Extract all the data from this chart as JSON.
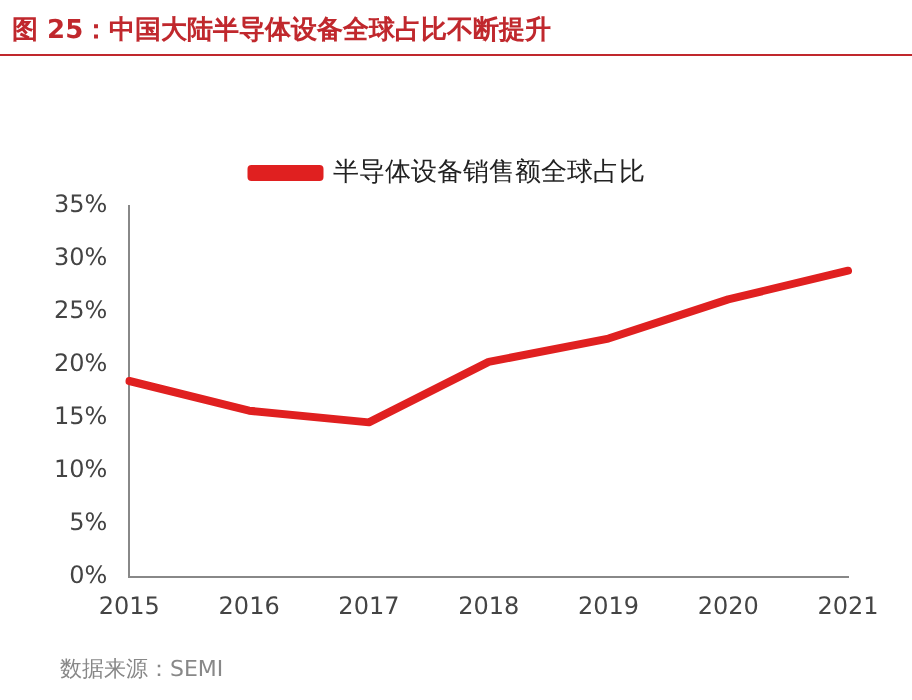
{
  "chart_data": {
    "type": "line",
    "title": "图 25：中国大陆半导体设备全球占比不断提升",
    "categories": [
      "2015",
      "2016",
      "2017",
      "2018",
      "2019",
      "2020",
      "2021"
    ],
    "series": [
      {
        "name": "半导体设备销售额全球占比",
        "color": "#e02020",
        "values": [
          18.5,
          15.7,
          14.6,
          20.3,
          22.5,
          26.2,
          28.9
        ]
      }
    ],
    "ylim": [
      0,
      35
    ],
    "yticks": [
      {
        "value": 0,
        "label": "0%"
      },
      {
        "value": 5,
        "label": "5%"
      },
      {
        "value": 10,
        "label": "10%"
      },
      {
        "value": 15,
        "label": "15%"
      },
      {
        "value": 20,
        "label": "20%"
      },
      {
        "value": 25,
        "label": "25%"
      },
      {
        "value": 30,
        "label": "30%"
      },
      {
        "value": 35,
        "label": "35%"
      }
    ],
    "grid": false,
    "legend": "top",
    "marker": "none",
    "line_style": "solid",
    "annotations": [
      "数据来源：SEMI"
    ]
  }
}
